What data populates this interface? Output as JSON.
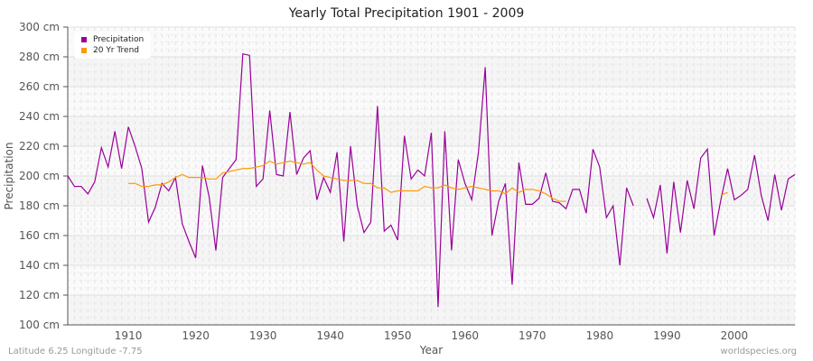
{
  "title": "Yearly Total Precipitation 1901 - 2009",
  "footer": {
    "left": "Latitude 6.25 Longitude -7.75",
    "right": "worldspecies.org"
  },
  "legend": {
    "items": [
      {
        "label": "Precipitation",
        "color": "#990099"
      },
      {
        "label": "20 Yr Trend",
        "color": "#ff9900"
      }
    ]
  },
  "chart_data": {
    "type": "line",
    "title": "Yearly Total Precipitation 1901 - 2009",
    "xlabel": "Year",
    "ylabel": "Precipitation",
    "xlim": [
      1901,
      2009
    ],
    "ylim": [
      100,
      300
    ],
    "x_ticks": [
      1910,
      1920,
      1930,
      1940,
      1950,
      1960,
      1970,
      1980,
      1990,
      2000
    ],
    "y_ticks": [
      "100 cm",
      "120 cm",
      "140 cm",
      "160 cm",
      "180 cm",
      "200 cm",
      "220 cm",
      "240 cm",
      "260 cm",
      "280 cm",
      "300 cm"
    ],
    "grid": true,
    "legend_position": "top-left",
    "series": [
      {
        "name": "Precipitation",
        "color": "#990099",
        "start_year": 1901,
        "values": [
          200,
          193,
          193,
          188,
          196,
          219,
          206,
          230,
          205,
          233,
          220,
          205,
          169,
          179,
          195,
          190,
          199,
          168,
          156,
          145,
          207,
          186,
          150,
          199,
          205,
          211,
          282,
          281,
          193,
          198,
          244,
          201,
          200,
          243,
          201,
          212,
          217,
          184,
          199,
          189,
          216,
          156,
          220,
          180,
          162,
          169,
          247,
          163,
          167,
          157,
          227,
          198,
          204,
          200,
          229,
          112,
          230,
          150,
          211,
          195,
          184,
          216,
          273,
          160,
          183,
          195,
          127,
          209,
          181,
          181,
          185,
          202,
          183,
          182,
          178,
          191,
          191,
          175,
          218,
          206,
          172,
          180,
          140,
          192,
          180,
          null,
          185,
          172,
          194,
          148,
          196,
          162,
          197,
          178,
          212,
          218,
          160,
          184,
          205,
          184,
          187,
          191,
          214,
          187,
          170,
          201,
          177,
          198,
          201
        ]
      },
      {
        "name": "20 Yr Trend",
        "color": "#ff9900",
        "start_year": 1910,
        "values": [
          195,
          195,
          193,
          193,
          194,
          194,
          196,
          199,
          201,
          199,
          199,
          199,
          198,
          198,
          202,
          203,
          204,
          205,
          205,
          206,
          207,
          210,
          208,
          209,
          210,
          209,
          208,
          209,
          204,
          200,
          199,
          198,
          197,
          197,
          197,
          195,
          195,
          192,
          192,
          189,
          190,
          190,
          190,
          190,
          193,
          192,
          192,
          194,
          192,
          191,
          192,
          193,
          192,
          191,
          190,
          190,
          188,
          192,
          189,
          191,
          191,
          190,
          188,
          185,
          183,
          183,
          null,
          null,
          null,
          null,
          null,
          null,
          null,
          null,
          null,
          null,
          null,
          null,
          null,
          null,
          null,
          null,
          null,
          null,
          null,
          null,
          null,
          null,
          187,
          189
        ]
      }
    ]
  }
}
